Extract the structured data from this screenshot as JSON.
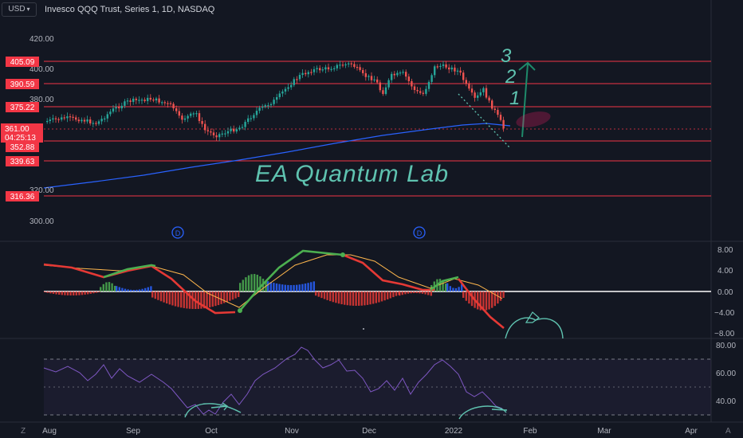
{
  "header": {
    "currency_button": "USD",
    "symbol_title": "Invesco QQQ Trust, Series 1, 1D, NASDAQ"
  },
  "watermark": "EA Quantum Lab",
  "annotations": {
    "wave_labels": [
      "3",
      "2",
      "1"
    ],
    "dividend_markers": [
      "D",
      "D"
    ]
  },
  "price_axis": {
    "ticks": [
      "420.00",
      "400.00",
      "380.00",
      "320.00",
      "300.00"
    ],
    "level_labels": [
      "405.09",
      "390.59",
      "375.22",
      "352.88",
      "339.63",
      "316.36"
    ],
    "last_price": "361.00",
    "countdown": "04:25:13",
    "colors": {
      "level_label": "#f23645",
      "last_price": "#f23645"
    }
  },
  "macd_axis": {
    "ticks": [
      "8.00",
      "4.00",
      "0.00",
      "−4.00",
      "−8.00"
    ]
  },
  "rsi_axis": {
    "ticks": [
      "80.00",
      "60.00",
      "40.00"
    ]
  },
  "time_axis": {
    "labels": [
      "Aug",
      "Sep",
      "Oct",
      "Nov",
      "Dec",
      "2022",
      "Feb",
      "Mar",
      "Apr"
    ]
  },
  "corner_controls": {
    "left": "Z",
    "right": "A"
  },
  "colors": {
    "background": "#131722",
    "up_candle": "#26a69a",
    "down_candle": "#ef5350",
    "ma_line": "#2962ff",
    "macd_up": "#4caf50",
    "macd_down": "#e53935",
    "signal_line": "#ffb74d",
    "rsi_line": "#7e57c2",
    "annotation": "#5fc3b0"
  }
}
